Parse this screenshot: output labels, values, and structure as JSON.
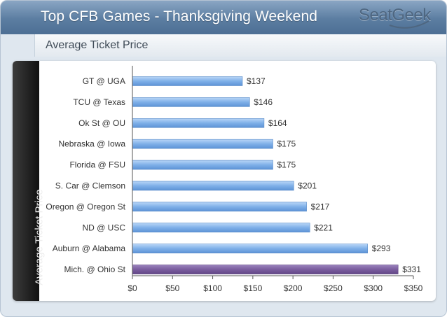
{
  "header": {
    "title": "Top CFB Games - Thanksgiving Weekend",
    "brand": "SeatGeek"
  },
  "subheader": {
    "title": "Average Ticket Price"
  },
  "colors": {
    "bar": "#7fb0e8",
    "bar_highlight": "#7a5c9e",
    "header": "#5b7da1"
  },
  "chart_data": {
    "type": "bar",
    "orientation": "horizontal",
    "title": "Top CFB Games - Thanksgiving Weekend",
    "subtitle": "Average Ticket Price",
    "ylabel": "Average Ticket Price",
    "xlabel": "",
    "categories": [
      "GT @ UGA",
      "TCU @ Texas",
      "Ok St @ OU",
      "Nebraska @ Iowa",
      "Florida @ FSU",
      "S. Car @ Clemson",
      "Oregon @ Oregon St",
      "ND @ USC",
      "Auburn @ Alabama",
      "Mich. @ Ohio St"
    ],
    "values": [
      137,
      146,
      164,
      175,
      175,
      201,
      217,
      221,
      293,
      331
    ],
    "data_labels": [
      "$137",
      "$146",
      "$164",
      "$175",
      "$175",
      "$201",
      "$217",
      "$221",
      "$293",
      "$331"
    ],
    "highlight_index": 9,
    "xlim": [
      0,
      350
    ],
    "x_ticks": [
      0,
      50,
      100,
      150,
      200,
      250,
      300,
      350
    ],
    "x_tick_labels": [
      "$0",
      "$50",
      "$100",
      "$150",
      "$200",
      "$250",
      "$300",
      "$350"
    ],
    "grid": false,
    "legend": "none"
  }
}
